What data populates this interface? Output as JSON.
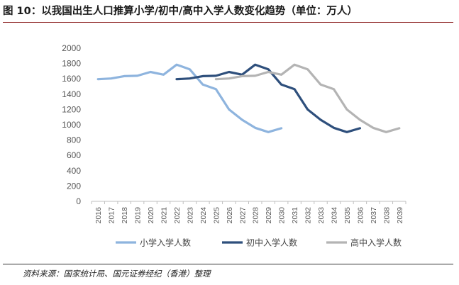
{
  "header": {
    "title": "图 10：以我国出生人口推算小学/初中/高中入学人数变化趋势（单位：万人）"
  },
  "footer": {
    "source": "资料来源：国家统计局、国元证券经纪（香港）整理"
  },
  "chart_data": {
    "type": "line",
    "title": "",
    "xlabel": "",
    "ylabel": "",
    "x": [
      "2016",
      "2017",
      "2018",
      "2019",
      "2020",
      "2021",
      "2022",
      "2023",
      "2024",
      "2025",
      "2026",
      "2027",
      "2028",
      "2029",
      "2030",
      "2031",
      "2032",
      "2033",
      "2034",
      "2035",
      "2036",
      "2037",
      "2038",
      "2039"
    ],
    "ylim": [
      0,
      2000
    ],
    "yticks": [
      0,
      200,
      400,
      600,
      800,
      1000,
      1200,
      1400,
      1600,
      1800,
      2000
    ],
    "grid": false,
    "legend_position": "bottom",
    "series": [
      {
        "name": "小学入学人数",
        "color": "#8eb4de",
        "values": [
          1595,
          1605,
          1635,
          1640,
          1690,
          1655,
          1785,
          1725,
          1525,
          1465,
          1200,
          1065,
          960,
          905,
          955,
          null,
          null,
          null,
          null,
          null,
          null,
          null,
          null,
          null
        ]
      },
      {
        "name": "初中入学人数",
        "color": "#2e4f7c",
        "values": [
          null,
          null,
          null,
          null,
          null,
          null,
          1595,
          1605,
          1635,
          1640,
          1690,
          1655,
          1785,
          1725,
          1525,
          1465,
          1200,
          1065,
          960,
          905,
          955,
          null,
          null,
          null
        ]
      },
      {
        "name": "高中入学人数",
        "color": "#b4b4b4",
        "values": [
          null,
          null,
          null,
          null,
          null,
          null,
          null,
          null,
          null,
          1595,
          1605,
          1635,
          1640,
          1690,
          1655,
          1785,
          1725,
          1525,
          1465,
          1200,
          1065,
          960,
          905,
          955
        ]
      }
    ]
  }
}
